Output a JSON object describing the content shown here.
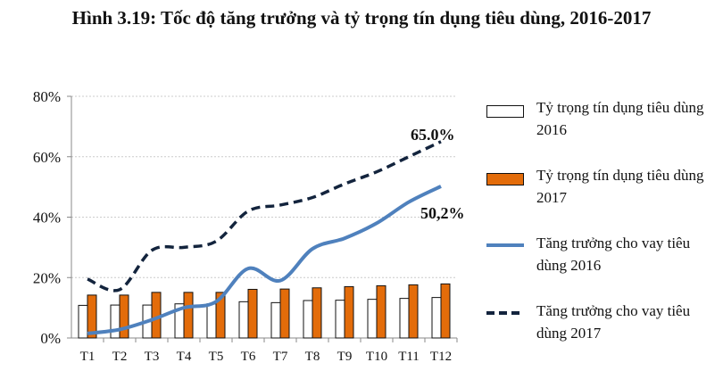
{
  "chart_data": {
    "type": "bar+line",
    "title": "Hình 3.19: Tốc độ tăng trưởng và tỷ trọng tín dụng tiêu dùng, 2016-2017",
    "categories": [
      "T1",
      "T2",
      "T3",
      "T4",
      "T5",
      "T6",
      "T7",
      "T8",
      "T9",
      "T10",
      "T11",
      "T12"
    ],
    "ylim": [
      0,
      80
    ],
    "yticks": [
      "0%",
      "20%",
      "40%",
      "60%",
      "80%"
    ],
    "grid": true,
    "legend_position": "right",
    "series": [
      {
        "name": "Tỷ trọng tín dụng tiêu dùng 2016",
        "kind": "bar",
        "color": "#ffffff",
        "values": [
          10.8,
          10.9,
          10.9,
          11.3,
          11.3,
          12.0,
          11.7,
          12.4,
          12.5,
          12.8,
          13.1,
          13.4
        ]
      },
      {
        "name": "Tỷ trọng tín dụng tiêu dùng 2017",
        "kind": "bar",
        "color": "#e36c0a",
        "values": [
          14.2,
          14.2,
          15.1,
          15.1,
          15.1,
          16.1,
          16.2,
          16.6,
          17.0,
          17.3,
          17.6,
          17.9
        ]
      },
      {
        "name": "Tăng trưởng cho vay tiêu dùng 2016",
        "kind": "line",
        "color": "#4f81bd",
        "values": [
          1.5,
          2.8,
          6.0,
          10.0,
          12.0,
          23.0,
          19.0,
          29.5,
          33.0,
          38.0,
          45.0,
          50.2
        ]
      },
      {
        "name": "Tăng trưởng cho vay tiêu dùng 2017",
        "kind": "dashed-line",
        "color": "#13243d",
        "values": [
          19.5,
          16.0,
          29.0,
          30.0,
          32.0,
          42.0,
          44.0,
          46.5,
          51.0,
          55.0,
          60.0,
          65.0
        ]
      }
    ],
    "annotations": [
      "65.0%",
      "50,2%"
    ]
  }
}
